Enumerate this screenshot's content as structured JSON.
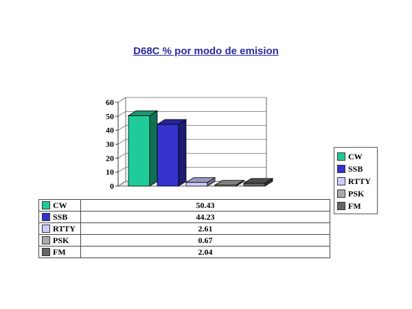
{
  "chart_data": {
    "type": "bar",
    "title": "D68C % por modo de emision",
    "categories": [
      "CW",
      "SSB",
      "RTTY",
      "PSK",
      "FM"
    ],
    "values": [
      50.43,
      44.23,
      2.61,
      0.67,
      2.04
    ],
    "value_labels": [
      "50.43",
      "44.23",
      "2.61",
      "0.67",
      "2.04"
    ],
    "ylim": [
      0,
      60
    ],
    "yticks": [
      "0",
      "10",
      "20",
      "30",
      "40",
      "50",
      "60"
    ],
    "grid": true,
    "legend_position": "right",
    "three_d": true,
    "colors": [
      "#1fcc99",
      "#3333cc",
      "#ccccff",
      "#aaaaaa",
      "#666666"
    ]
  }
}
